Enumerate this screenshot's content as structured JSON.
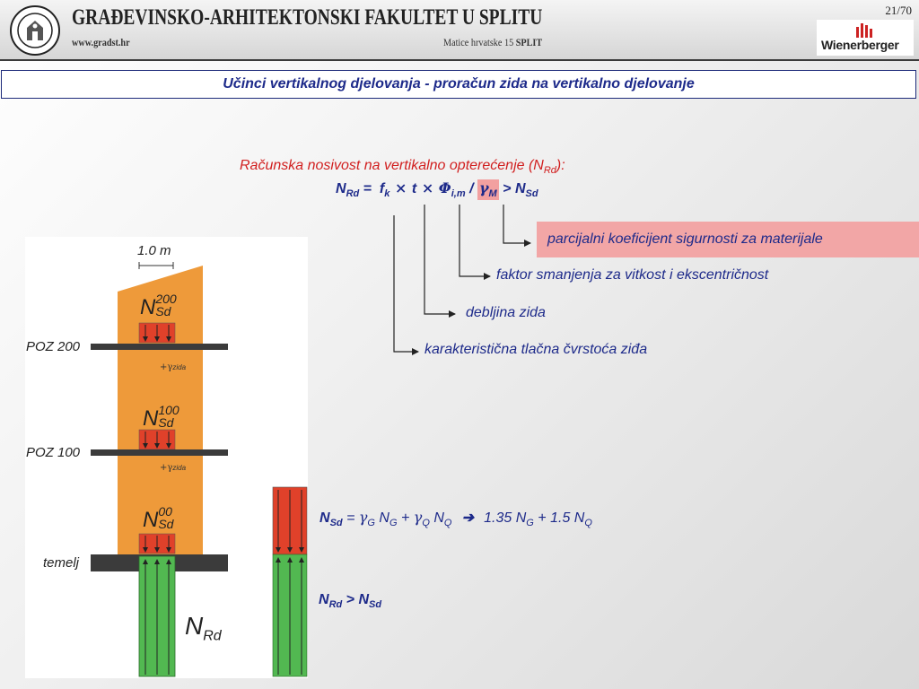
{
  "header": {
    "faculty_name": "GRAĐEVINSKO-ARHITEKTONSKI FAKULTET U SPLITU",
    "website": "www.gradst.hr",
    "address_prefix": "Matice hrvatske 15",
    "address_city": "SPLIT",
    "page_number": "21/70",
    "sponsor": "Wienerberger",
    "logo_icon": "university-seal-icon",
    "sponsor_icon": "wienerberger-logo-icon"
  },
  "title": "Učinci vertikalnog djelovanja - proračun zida na vertikalno djelovanje",
  "heading": {
    "text": "Računska nosivost na vertikalno opterećenje (N",
    "sub": "Rd",
    "suffix": "):"
  },
  "formula": {
    "lhs": "N",
    "lhs_sub": "Rd",
    "eq": " =  ",
    "fk": "f",
    "fk_sub": "k",
    "times": " × ",
    "t": "t",
    "phi": "Φ",
    "phi_sub": "i,m",
    "div": " / ",
    "gamma": "γ",
    "gamma_sub": "M",
    "gt": " > ",
    "rhs": "N",
    "rhs_sub": "Sd"
  },
  "annotations": {
    "partial_factor": "parcijalni koeficijent sigurnosti za materijale",
    "slenderness": "faktor smanjenja za vitkost i ekscentričnost",
    "thickness": "debljina zida",
    "strength": "karakteristična tlačna čvrstoća ziđa"
  },
  "diagram": {
    "width_label": "1.0 m",
    "levels": [
      "POZ 200",
      "POZ 100",
      "temelj"
    ],
    "n_symbol": "N",
    "n_sub": "Sd",
    "n_sups": [
      "200",
      "100",
      "00"
    ],
    "self_weight": "+γ",
    "self_weight_sub": "zida",
    "resistance": "N",
    "resistance_sub": "Rd"
  },
  "combination": {
    "lhs": "N",
    "lhs_sub": "Sd",
    "eq": " = ",
    "g": "γ",
    "g_sub": "G",
    "ng": " N",
    "ng_sub": "G",
    "plus": " + ",
    "q": "γ",
    "q_sub": "Q",
    "nq": " N",
    "nq_sub": "Q",
    "arrow": "  ➔  ",
    "result": "1.35 N",
    "result_sub1": "G",
    "result_mid": " + 1.5 N",
    "result_sub2": "Q"
  },
  "check": {
    "lhs": "N",
    "lhs_sub": "Rd",
    "gt": " > ",
    "rhs": "N",
    "rhs_sub": "Sd"
  },
  "colors": {
    "wall": "#ee9a3a",
    "load_arrows": "#e0412a",
    "resistance_arrows": "#52b851",
    "slab": "#3b3b3b",
    "text_blue": "#1d2a8a",
    "text_red": "#d11f1f",
    "highlight": "#f2a6a6"
  }
}
